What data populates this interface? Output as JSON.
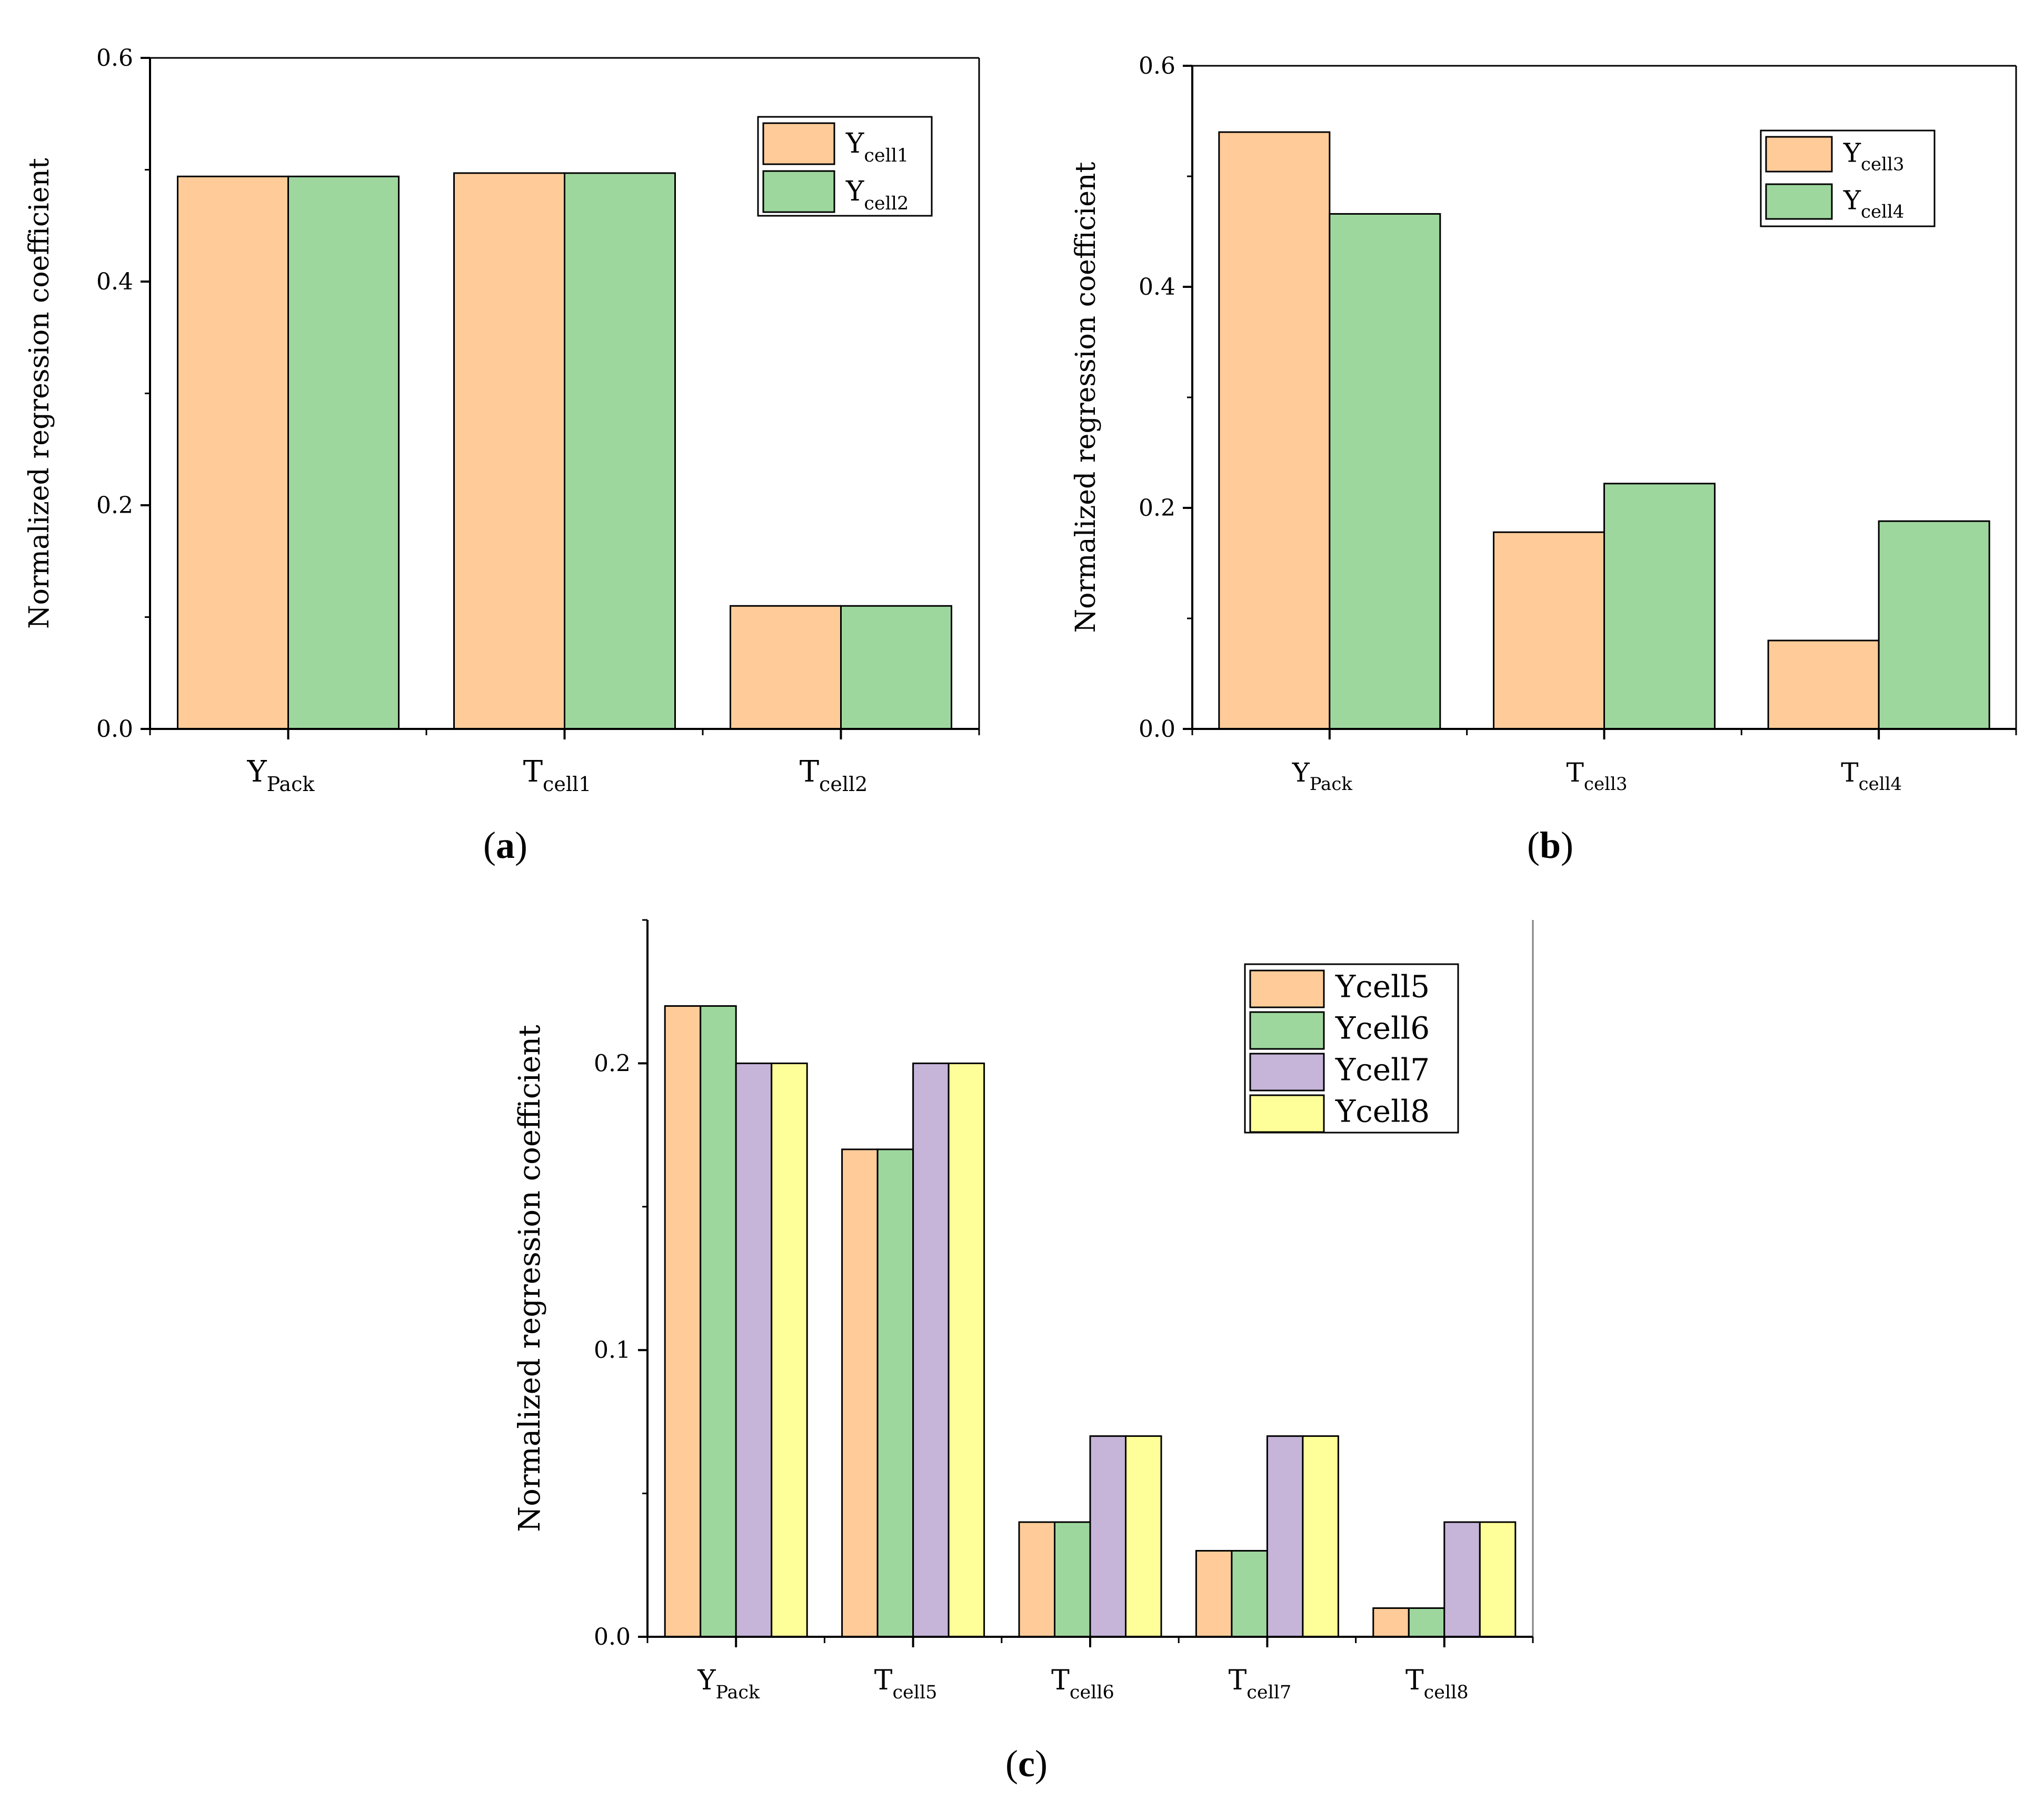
{
  "colors": {
    "orange": "#FFCC99",
    "green": "#9ED79E",
    "purple": "#C6B4D9",
    "yellow": "#FFFF99",
    "axis": "#000000",
    "frame": "#808080"
  },
  "chart_data": [
    {
      "panel": "a",
      "type": "bar",
      "ylabel": "Normalized regression coefficient",
      "ylim": [
        0,
        0.6
      ],
      "yticks": [
        "0.0",
        "0.2",
        "0.4",
        "0.6"
      ],
      "ytick_values": [
        0,
        0.2,
        0.4,
        0.6
      ],
      "categories": [
        {
          "main": "Y",
          "sub": "Pack"
        },
        {
          "main": "T",
          "sub": "cell1"
        },
        {
          "main": "T",
          "sub": "cell2"
        }
      ],
      "series": [
        {
          "name": {
            "main": "Y",
            "sub": "cell1"
          },
          "color": "#FFCC99",
          "values": [
            0.494,
            0.497,
            0.11
          ]
        },
        {
          "name": {
            "main": "Y",
            "sub": "cell2"
          },
          "color": "#9ED79E",
          "values": [
            0.494,
            0.497,
            0.11
          ]
        }
      ],
      "legend_position": "top-right",
      "caption": {
        "open": "(",
        "letter": "a",
        "close": ")"
      }
    },
    {
      "panel": "b",
      "type": "bar",
      "ylabel": "Normalized regression coefficient",
      "ylim": [
        0,
        0.6
      ],
      "yticks": [
        "0.0",
        "0.2",
        "0.4",
        "0.6"
      ],
      "ytick_values": [
        0,
        0.2,
        0.4,
        0.6
      ],
      "categories": [
        {
          "main": "Y",
          "sub": "Pack"
        },
        {
          "main": "T",
          "sub": "cell3"
        },
        {
          "main": "T",
          "sub": "cell4"
        }
      ],
      "series": [
        {
          "name": {
            "main": "Y",
            "sub": "cell3"
          },
          "color": "#FFCC99",
          "values": [
            0.54,
            0.178,
            0.08
          ]
        },
        {
          "name": {
            "main": "Y",
            "sub": "cell4"
          },
          "color": "#9ED79E",
          "values": [
            0.466,
            0.222,
            0.188
          ]
        }
      ],
      "legend_position": "top-right",
      "caption": {
        "open": "(",
        "letter": "b",
        "close": ")"
      }
    },
    {
      "panel": "c",
      "type": "bar",
      "ylabel": "Normalized regression coefficient",
      "ylim": [
        0,
        0.25
      ],
      "yticks": [
        "0.0",
        "0.1",
        "0.2"
      ],
      "ytick_values": [
        0,
        0.1,
        0.2
      ],
      "categories": [
        {
          "main": "Y",
          "sub": "Pack"
        },
        {
          "main": "T",
          "sub": "cell5"
        },
        {
          "main": "T",
          "sub": "cell6"
        },
        {
          "main": "T",
          "sub": "cell7"
        },
        {
          "main": "T",
          "sub": "cell8"
        }
      ],
      "series": [
        {
          "name": {
            "main": "Ycell5",
            "sub": ""
          },
          "color": "#FFCC99",
          "values": [
            0.22,
            0.17,
            0.04,
            0.03,
            0.01
          ]
        },
        {
          "name": {
            "main": "Ycell6",
            "sub": ""
          },
          "color": "#9ED79E",
          "values": [
            0.22,
            0.17,
            0.04,
            0.03,
            0.01
          ]
        },
        {
          "name": {
            "main": "Ycell7",
            "sub": ""
          },
          "color": "#C6B4D9",
          "values": [
            0.2,
            0.2,
            0.07,
            0.07,
            0.04
          ]
        },
        {
          "name": {
            "main": "Ycell8",
            "sub": ""
          },
          "color": "#FFFF99",
          "values": [
            0.2,
            0.2,
            0.07,
            0.07,
            0.04
          ]
        }
      ],
      "legend_position": "top-right",
      "caption": {
        "open": "(",
        "letter": "c",
        "close": ")"
      }
    }
  ]
}
